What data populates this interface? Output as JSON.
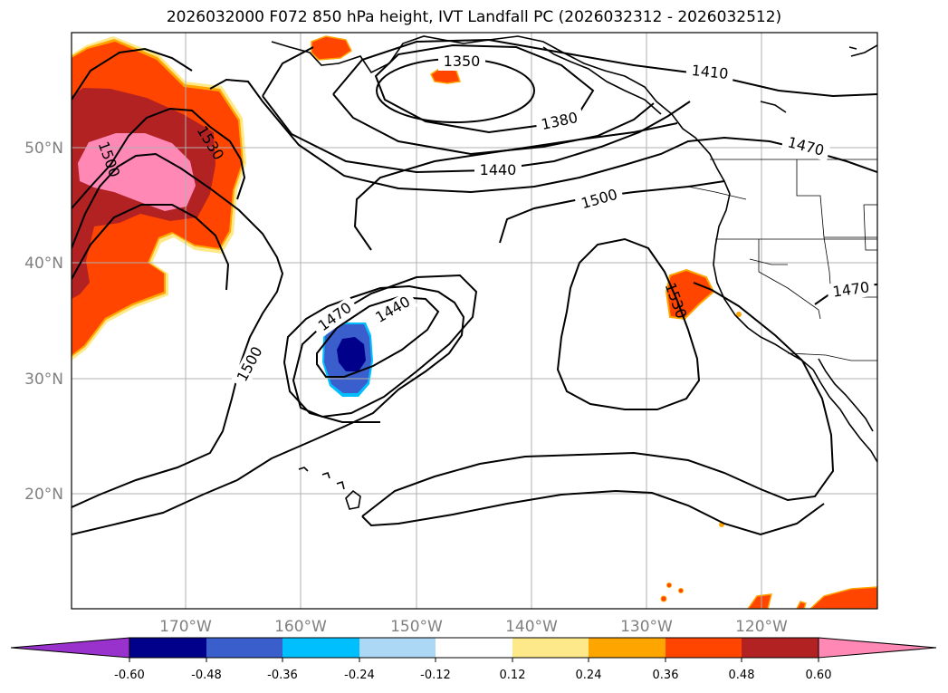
{
  "title": "2026032000 F072 850 hPa height, IVT Landfall PC (2026032312 - 2026032512)",
  "map": {
    "lat_labels": [
      "50°N",
      "40°N",
      "30°N",
      "20°N"
    ],
    "lon_labels": [
      "170°W",
      "160°W",
      "150°W",
      "140°W",
      "130°W",
      "120°W"
    ],
    "contour_labels": [
      "1350",
      "1380",
      "1410",
      "1440",
      "1470",
      "1500",
      "1530"
    ],
    "contour_line_color": "#000000",
    "coastline_color": "#000000",
    "grid_color": "#b0b0b0"
  },
  "colorbar": {
    "ticks": [
      "-0.60",
      "-0.48",
      "-0.36",
      "-0.24",
      "-0.12",
      "0.12",
      "0.24",
      "0.36",
      "0.48",
      "0.60"
    ],
    "colors": {
      "under": "#9932cc",
      "bin_-0.60_-0.48": "#00008b",
      "bin_-0.48_-0.36": "#3a5fcd",
      "bin_-0.36_-0.24": "#00bfff",
      "bin_-0.24_-0.12": "#add8f5",
      "bin_-0.12_0.12": "#ffffff",
      "bin_0.12_0.24": "#fde98a",
      "bin_0.24_0.36": "#ffa500",
      "bin_0.36_0.48": "#ff4500",
      "bin_0.48_0.60": "#b22222",
      "over": "#ff88b4"
    }
  }
}
